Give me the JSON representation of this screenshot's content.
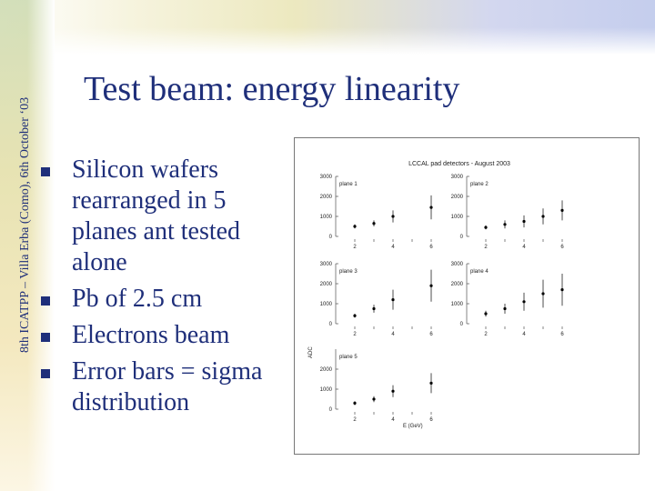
{
  "sidebar": {
    "conference": "8th ICATPP – Villa Erba (Como), 6th October ‘03"
  },
  "slide": {
    "title": "Test beam: energy linearity",
    "bullets": [
      "Silicon wafers rearranged in 5 planes ant tested alone",
      "Pb of 2.5 cm",
      "Electrons beam",
      "Error bars = sigma distribution"
    ]
  },
  "figure": {
    "title": "LCCAL pad detectors - August 2003",
    "xlabel": "E (GeV)",
    "ylabel": "ADC",
    "colors": {
      "axis": "#333333",
      "point": "#000000"
    }
  },
  "chart_data": [
    {
      "type": "scatter",
      "name": "plane 1",
      "x": [
        2,
        3,
        4,
        6
      ],
      "y": [
        500,
        650,
        1000,
        1450
      ],
      "err": [
        100,
        150,
        300,
        600
      ],
      "ylim": [
        0,
        3000
      ],
      "yticks": [
        0,
        1000,
        2000,
        3000
      ],
      "xticks": [
        2,
        4,
        6
      ]
    },
    {
      "type": "scatter",
      "name": "plane 2",
      "x": [
        2,
        3,
        4,
        5,
        6
      ],
      "y": [
        450,
        600,
        750,
        1000,
        1300
      ],
      "err": [
        100,
        200,
        300,
        400,
        500
      ],
      "ylim": [
        0,
        3000
      ],
      "yticks": [
        0,
        1000,
        2000,
        3000
      ],
      "xticks": [
        2,
        4,
        6
      ]
    },
    {
      "type": "scatter",
      "name": "plane 3",
      "x": [
        2,
        3,
        4,
        6
      ],
      "y": [
        400,
        750,
        1200,
        1900
      ],
      "err": [
        100,
        200,
        500,
        800
      ],
      "ylim": [
        0,
        3000
      ],
      "yticks": [
        0,
        1000,
        2000,
        3000
      ],
      "xticks": [
        2,
        4,
        6
      ]
    },
    {
      "type": "scatter",
      "name": "plane 4",
      "x": [
        2,
        3,
        4,
        5,
        6
      ],
      "y": [
        500,
        750,
        1100,
        1500,
        1700
      ],
      "err": [
        150,
        250,
        450,
        700,
        800
      ],
      "ylim": [
        0,
        3000
      ],
      "yticks": [
        0,
        1000,
        2000,
        3000
      ],
      "xticks": [
        2,
        4,
        6
      ]
    },
    {
      "type": "scatter",
      "name": "plane 5",
      "x": [
        2,
        3,
        4,
        6
      ],
      "y": [
        300,
        500,
        900,
        1300
      ],
      "err": [
        100,
        150,
        300,
        500
      ],
      "ylim": [
        0,
        3000
      ],
      "yticks": [
        0,
        1000,
        2000
      ],
      "xticks": [
        2,
        4,
        6
      ]
    }
  ]
}
